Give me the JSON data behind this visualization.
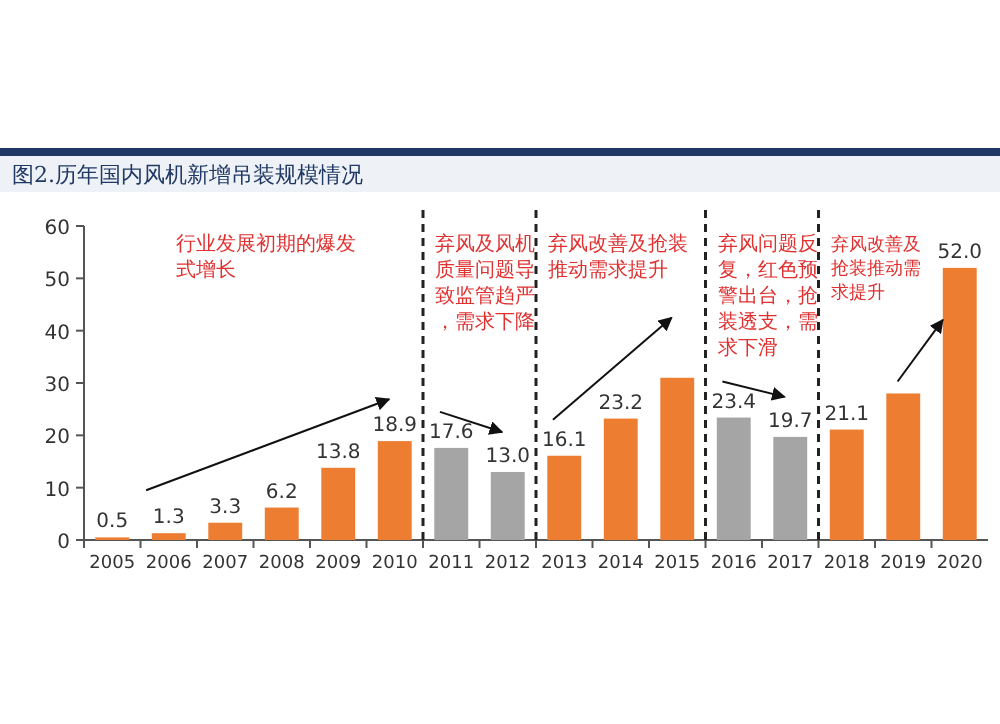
{
  "chart_data": {
    "type": "bar",
    "title": "图2.历年国内风机新增吊装规模情况",
    "categories": [
      "2005",
      "2006",
      "2007",
      "2008",
      "2009",
      "2010",
      "2011",
      "2012",
      "2013",
      "2014",
      "2015",
      "2016",
      "2017",
      "2018",
      "2019",
      "2020"
    ],
    "values": [
      0.5,
      1.3,
      3.3,
      6.2,
      13.8,
      18.9,
      17.6,
      13.0,
      16.1,
      23.2,
      31,
      23.4,
      19.7,
      21.1,
      28,
      52.0
    ],
    "value_labels": [
      "0.5",
      "1.3",
      "3.3",
      "6.2",
      "13.8",
      "18.9",
      "17.6",
      "13.0",
      "16.1",
      "23.2",
      null,
      "23.4",
      "19.7",
      "21.1",
      null,
      "52.0"
    ],
    "colors": [
      "#ed7d31",
      "#ed7d31",
      "#ed7d31",
      "#ed7d31",
      "#ed7d31",
      "#ed7d31",
      "#a5a5a5",
      "#a5a5a5",
      "#ed7d31",
      "#ed7d31",
      "#ed7d31",
      "#a5a5a5",
      "#a5a5a5",
      "#ed7d31",
      "#ed7d31",
      "#ed7d31"
    ],
    "ylim": [
      0,
      60
    ],
    "yticks": [
      0,
      10,
      20,
      30,
      40,
      50,
      60
    ],
    "grid": false,
    "annotations": [
      "行业发展初期的爆发式增长",
      "弃风及风机质量问题导致监管趋严，需求下降",
      "弃风改善及抢装推动需求提升",
      "弃风问题反复，红色预警出台，抢装透支，需求下滑",
      "弃风改善及抢装推动需求提升"
    ]
  }
}
